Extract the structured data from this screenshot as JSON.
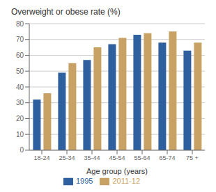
{
  "chart_data": {
    "type": "bar",
    "title": "Overweight or obese rate (%)",
    "x_label": "Age group (years)",
    "categories": [
      "18-24",
      "25-34",
      "35-44",
      "45-54",
      "55-64",
      "65-74",
      "75 +"
    ],
    "series": [
      {
        "name": "1995",
        "color": "#2e5f9e",
        "values": [
          32,
          49,
          57,
          67,
          73,
          68,
          63
        ]
      },
      {
        "name": "2011-12",
        "color": "#c8a264",
        "values": [
          36,
          55,
          65,
          71,
          74,
          75,
          68
        ]
      }
    ],
    "ylim": [
      0,
      80
    ],
    "yticks": [
      0,
      10,
      20,
      30,
      40,
      50,
      60,
      70,
      80
    ],
    "grid": true,
    "legend": "bottom"
  }
}
